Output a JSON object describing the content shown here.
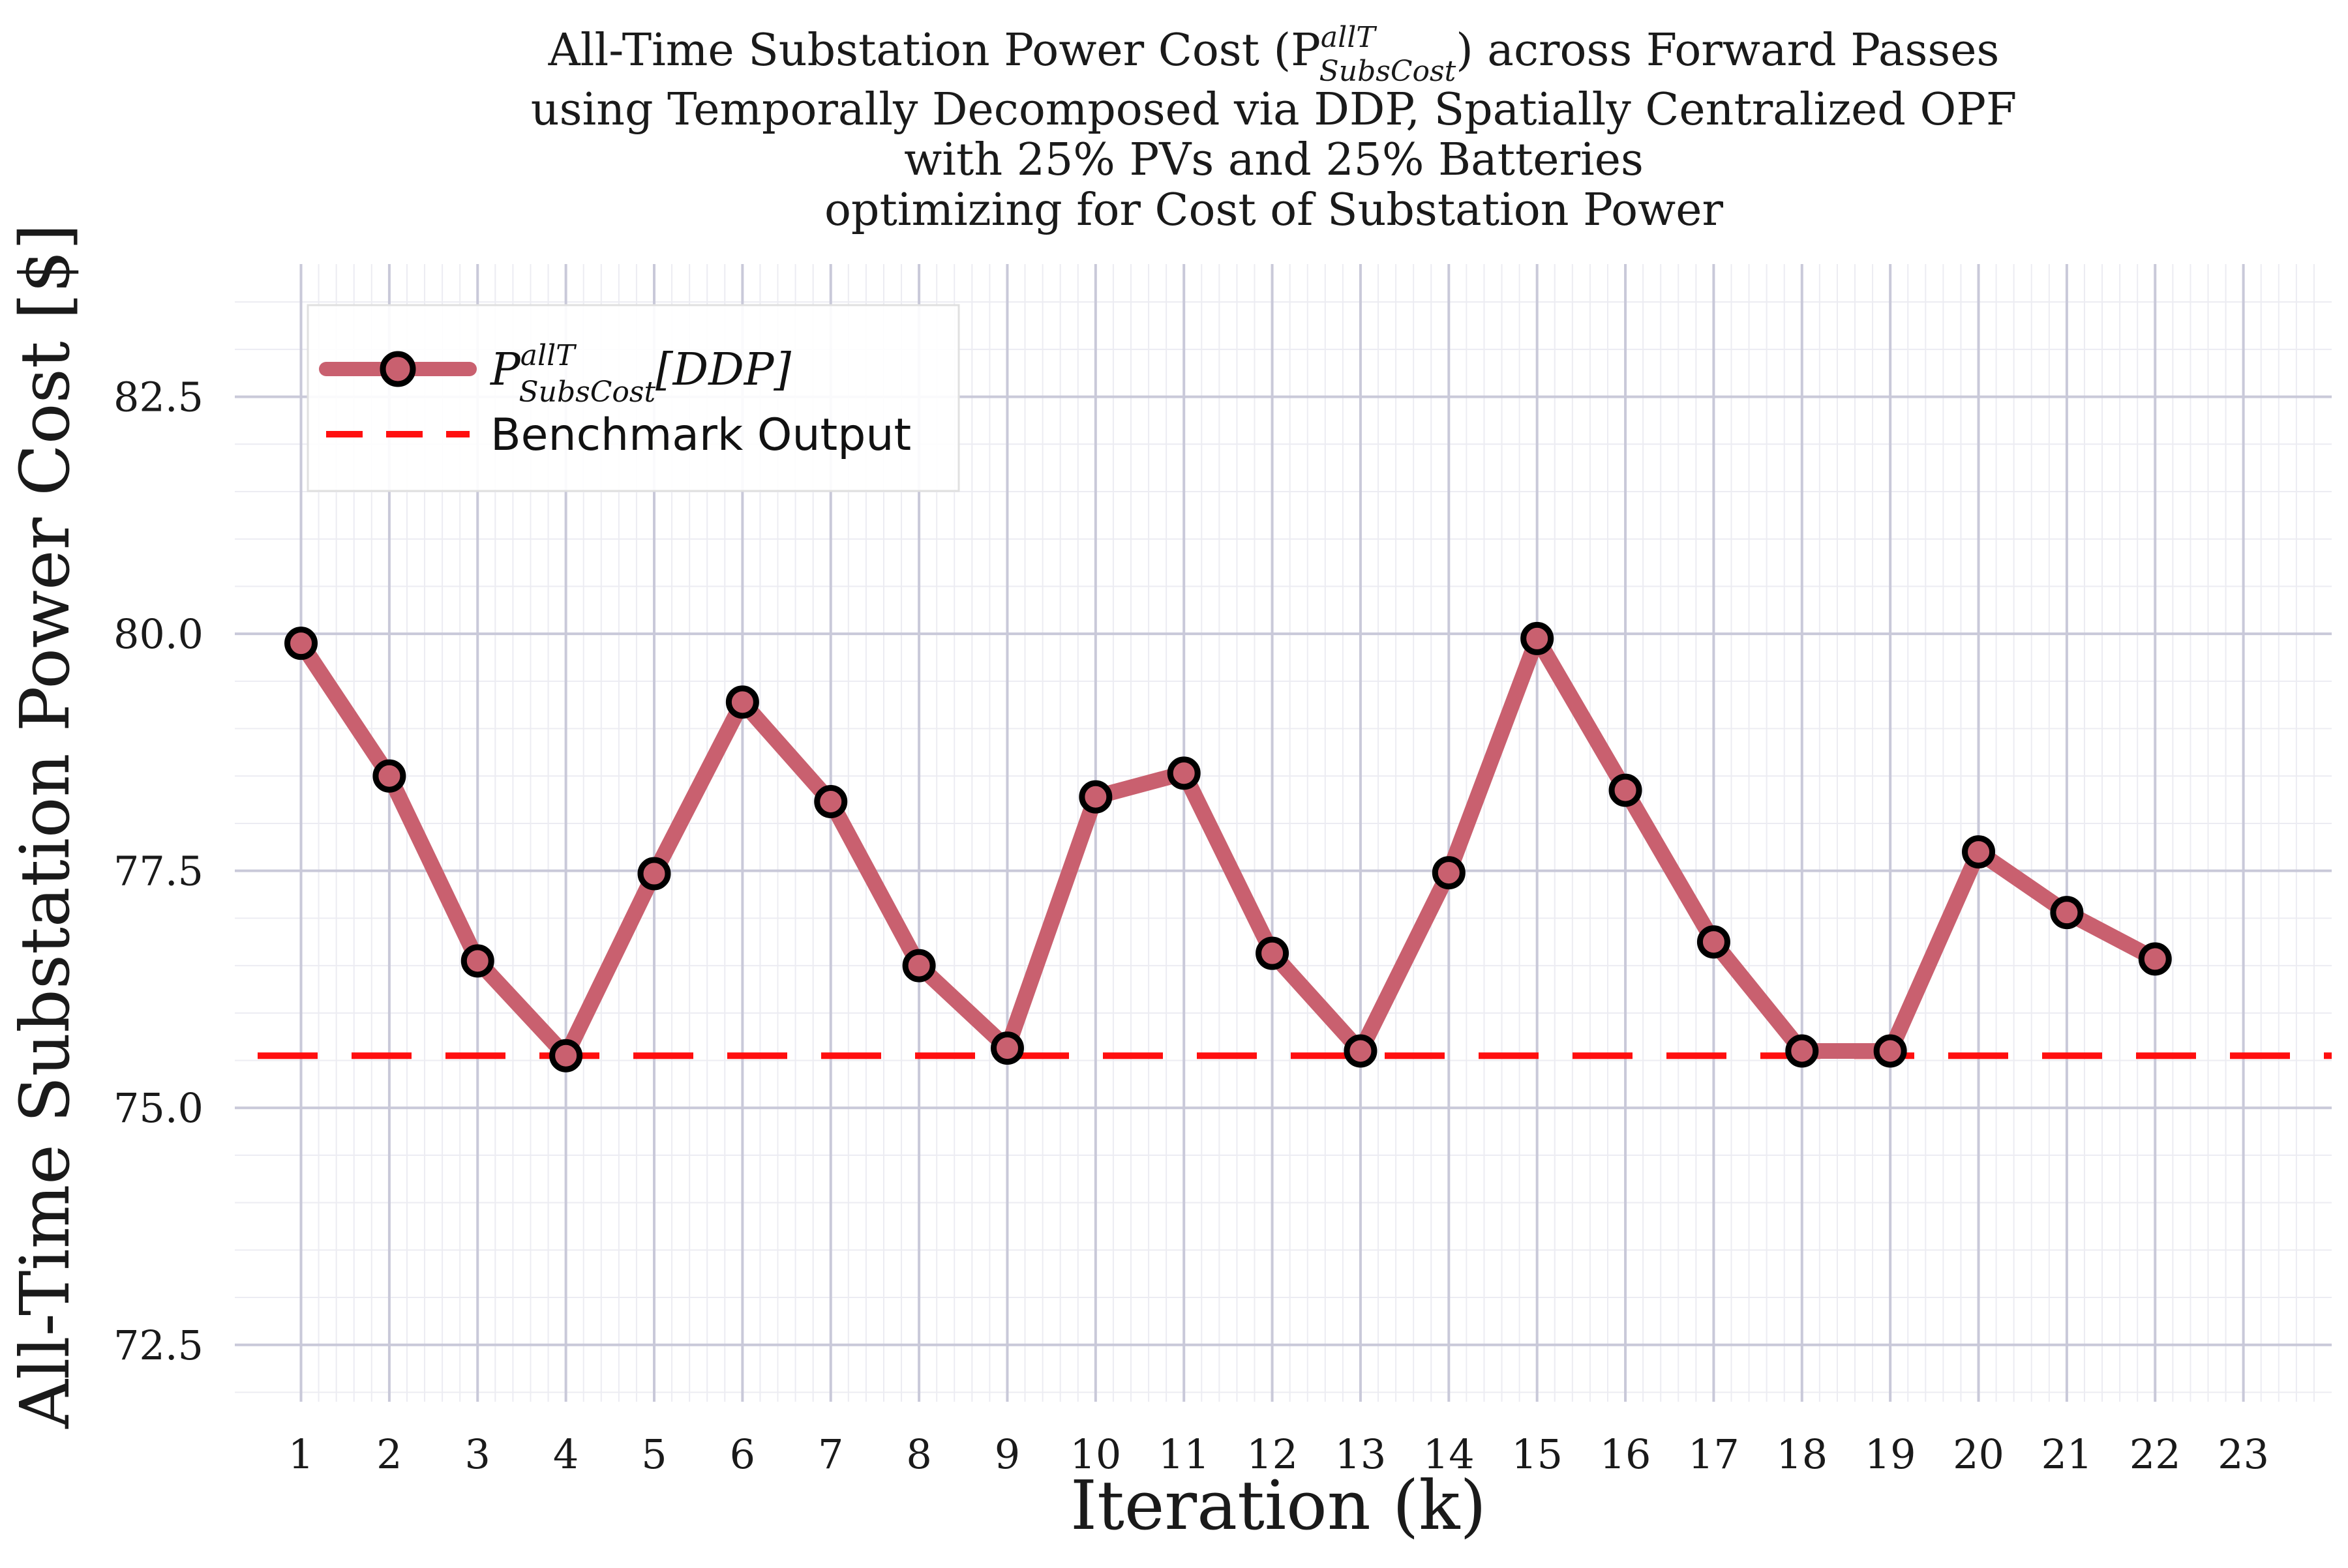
{
  "chart_data": {
    "type": "line",
    "title_lines": [
      "All-Time Substation Power Cost (P",
      "using Temporally Decomposed via DDP, Spatially Centralized OPF",
      "with 25% PVs and 25% Batteries",
      "optimizing for Cost of Substation Power"
    ],
    "title_symbol": {
      "superscript": "allT",
      "subscript": "SubsCost",
      "suffix": ") across Forward Passes"
    },
    "xlabel": "Iteration (k)",
    "ylabel": "All-Time Substation Power Cost [$]",
    "x_ticks": [
      1,
      2,
      3,
      4,
      5,
      6,
      7,
      8,
      9,
      10,
      11,
      12,
      13,
      14,
      15,
      16,
      17,
      18,
      19,
      20,
      21,
      22,
      23
    ],
    "y_ticks": [
      "72.5",
      "75.0",
      "77.5",
      "80.0",
      "82.5"
    ],
    "xlim": [
      0.25,
      24.0
    ],
    "ylim": [
      71.9,
      83.9
    ],
    "grid": true,
    "legend_position": "top-left",
    "series": [
      {
        "legend_symbol": "P",
        "legend_superscript": "allT",
        "legend_subscript": "SubsCost",
        "legend_suffix": "[DDP]",
        "x": [
          1,
          2,
          3,
          4,
          5,
          6,
          7,
          8,
          9,
          10,
          11,
          12,
          13,
          14,
          15,
          16,
          17,
          18,
          19,
          20,
          21,
          22
        ],
        "values": [
          79.9,
          78.5,
          76.55,
          75.55,
          77.47,
          79.28,
          78.23,
          76.5,
          75.63,
          78.28,
          78.53,
          76.63,
          75.6,
          77.48,
          79.95,
          78.35,
          76.75,
          75.6,
          75.6,
          77.7,
          77.06,
          76.57
        ],
        "color": "#c9606f",
        "marker_color": "#c9606f",
        "marker_edge": "#000000"
      }
    ],
    "benchmark": {
      "label": "Benchmark Output",
      "value": 75.55,
      "color": "#ff0f0f"
    },
    "grid_color_major": "#c9c9d9",
    "grid_color_minor": "#ececf2"
  }
}
